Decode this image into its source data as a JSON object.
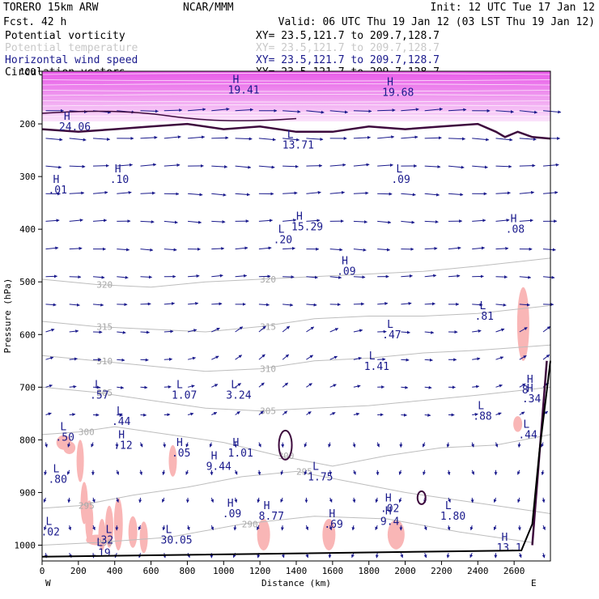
{
  "header": {
    "model": "TORERO  15km ARW",
    "fcst": "Fcst.   42 h",
    "center": "NCAR/MMM",
    "init": "Init: 12 UTC Tue 17 Jan 12",
    "valid": "Valid: 06 UTC Thu 19 Jan 12 (03 LST Thu 19 Jan 12)",
    "fields": [
      {
        "name": "Potential vorticity",
        "xy": "XY=  23.5,121.7 to 209.7,128.7",
        "color": "#000000"
      },
      {
        "name": "Potential temperature",
        "xy": "XY=  23.5,121.7 to 209.7,128.7",
        "color": "#c8c8c8"
      },
      {
        "name": "Horizontal wind speed",
        "xy": "XY=  23.5,121.7 to 209.7,128.7",
        "color": "#1a1a8c"
      },
      {
        "name": "Circulation vectors",
        "xy": "XY=  23.5,121.7 to 209.7,128.7",
        "color": "#000000"
      }
    ]
  },
  "chart_data": {
    "type": "cross-section",
    "xlabel": "Distance (km)",
    "ylabel": "Pressure (hPa)",
    "xlim": [
      0,
      2800
    ],
    "ylim": [
      1030,
      100
    ],
    "x_ticks": [
      0,
      200,
      400,
      600,
      800,
      1000,
      1200,
      1400,
      1600,
      1800,
      2000,
      2200,
      2400,
      2600
    ],
    "y_ticks": [
      100,
      200,
      300,
      400,
      500,
      600,
      700,
      800,
      900,
      1000
    ],
    "west_label": "W",
    "east_label": "E",
    "theta_contours": [
      {
        "label": "320",
        "points": [
          [
            0,
            495
          ],
          [
            300,
            505
          ],
          [
            600,
            510
          ],
          [
            900,
            500
          ],
          [
            1200,
            495
          ],
          [
            1500,
            490
          ],
          [
            1800,
            485
          ],
          [
            2100,
            480
          ],
          [
            2400,
            470
          ],
          [
            2800,
            455
          ]
        ]
      },
      {
        "label": "315",
        "points": [
          [
            0,
            575
          ],
          [
            300,
            585
          ],
          [
            600,
            590
          ],
          [
            900,
            595
          ],
          [
            1200,
            585
          ],
          [
            1500,
            570
          ],
          [
            1800,
            565
          ],
          [
            2100,
            565
          ],
          [
            2400,
            560
          ],
          [
            2800,
            545
          ]
        ]
      },
      {
        "label": "310",
        "points": [
          [
            0,
            640
          ],
          [
            300,
            650
          ],
          [
            600,
            660
          ],
          [
            900,
            670
          ],
          [
            1200,
            665
          ],
          [
            1500,
            650
          ],
          [
            1800,
            645
          ],
          [
            2100,
            635
          ],
          [
            2400,
            630
          ],
          [
            2800,
            620
          ]
        ]
      },
      {
        "label": "305",
        "points": [
          [
            0,
            700
          ],
          [
            300,
            710
          ],
          [
            600,
            725
          ],
          [
            900,
            740
          ],
          [
            1200,
            745
          ],
          [
            1500,
            740
          ],
          [
            1800,
            735
          ],
          [
            2100,
            725
          ],
          [
            2400,
            715
          ],
          [
            2800,
            700
          ]
        ]
      },
      {
        "label": "300",
        "points": [
          [
            0,
            790
          ],
          [
            200,
            785
          ],
          [
            400,
            775
          ],
          [
            700,
            790
          ],
          [
            1000,
            805
          ],
          [
            1300,
            830
          ],
          [
            1600,
            850
          ],
          [
            1900,
            830
          ],
          [
            2200,
            815
          ],
          [
            2500,
            810
          ],
          [
            2800,
            790
          ]
        ]
      },
      {
        "label": "295",
        "points": [
          [
            0,
            930
          ],
          [
            200,
            925
          ],
          [
            500,
            905
          ],
          [
            800,
            890
          ],
          [
            1100,
            870
          ],
          [
            1400,
            860
          ],
          [
            1700,
            880
          ],
          [
            2000,
            900
          ],
          [
            2300,
            915
          ],
          [
            2600,
            930
          ],
          [
            2800,
            940
          ]
        ]
      },
      {
        "label": "290",
        "points": [
          [
            0,
            1000
          ],
          [
            300,
            995
          ],
          [
            700,
            985
          ],
          [
            1100,
            960
          ],
          [
            1500,
            945
          ],
          [
            1900,
            950
          ],
          [
            2300,
            975
          ],
          [
            2700,
            995
          ]
        ]
      }
    ],
    "pv_2pvu_points": [
      [
        0,
        210
      ],
      [
        200,
        215
      ],
      [
        400,
        210
      ],
      [
        600,
        205
      ],
      [
        800,
        200
      ],
      [
        1000,
        210
      ],
      [
        1200,
        205
      ],
      [
        1400,
        215
      ],
      [
        1600,
        215
      ],
      [
        1800,
        205
      ],
      [
        2000,
        210
      ],
      [
        2200,
        205
      ],
      [
        2400,
        200
      ],
      [
        2500,
        215
      ],
      [
        2550,
        225
      ],
      [
        2620,
        215
      ],
      [
        2700,
        225
      ],
      [
        2800,
        228
      ]
    ],
    "high_speed_band": {
      "from_hPa": 100,
      "to_hPa": 200
    },
    "wind_label_color": "#1a1a8c",
    "vector_color": "#1a1a8c",
    "extrema": [
      {
        "type": "H",
        "value": "24.06",
        "x": 120,
        "p": 195
      },
      {
        "type": "H",
        "value": "19.41",
        "x": 1050,
        "p": 125
      },
      {
        "type": "H",
        "value": "19.68",
        "x": 1900,
        "p": 130
      },
      {
        "type": "L",
        "value": "13.71",
        "x": 1350,
        "p": 230
      },
      {
        "type": "H",
        "value": "15.29",
        "x": 1400,
        "p": 385
      },
      {
        "type": "L",
        "value": ".20",
        "x": 1300,
        "p": 410
      },
      {
        "type": "H",
        "value": ".10",
        "x": 400,
        "p": 295
      },
      {
        "type": "L",
        "value": ".09",
        "x": 1950,
        "p": 295
      },
      {
        "type": "H",
        "value": ".01",
        "x": 60,
        "p": 315
      },
      {
        "type": "H",
        "value": ".08",
        "x": 2580,
        "p": 390
      },
      {
        "type": "H",
        "value": ".09",
        "x": 1650,
        "p": 470
      },
      {
        "type": "L",
        "value": ".81",
        "x": 2410,
        "p": 555
      },
      {
        "type": "L",
        "value": ".47",
        "x": 1900,
        "p": 590
      },
      {
        "type": "L",
        "value": "1.41",
        "x": 1800,
        "p": 650
      },
      {
        "type": "L",
        "value": ".57",
        "x": 290,
        "p": 705
      },
      {
        "type": "L",
        "value": "1.07",
        "x": 740,
        "p": 705
      },
      {
        "type": "L",
        "value": "3.24",
        "x": 1040,
        "p": 705
      },
      {
        "type": "L",
        "value": ".88",
        "x": 2400,
        "p": 745
      },
      {
        "type": "L",
        "value": ".44",
        "x": 410,
        "p": 755
      },
      {
        "type": "L",
        "value": ".50",
        "x": 100,
        "p": 785
      },
      {
        "type": "H",
        "value": ".12",
        "x": 420,
        "p": 800
      },
      {
        "type": "H",
        "value": ".05",
        "x": 740,
        "p": 815
      },
      {
        "type": "H",
        "value": "1.01",
        "x": 1050,
        "p": 815
      },
      {
        "type": "H",
        "value": "9.44",
        "x": 930,
        "p": 840
      },
      {
        "type": "L",
        "value": "1.75",
        "x": 1490,
        "p": 860
      },
      {
        "type": "L",
        "value": ".80",
        "x": 60,
        "p": 865
      },
      {
        "type": "H",
        "value": ".02",
        "x": 1890,
        "p": 920
      },
      {
        "type": "H",
        "value": "9.4",
        "x": 1890,
        "p": 945
      },
      {
        "type": "L",
        "value": "1.80",
        "x": 2220,
        "p": 935
      },
      {
        "type": "H",
        "value": ".09",
        "x": 1020,
        "p": 930
      },
      {
        "type": "H",
        "value": "8.77",
        "x": 1220,
        "p": 935
      },
      {
        "type": "H",
        "value": ".69",
        "x": 1580,
        "p": 950
      },
      {
        "type": "L",
        "value": "32",
        "x": 350,
        "p": 980
      },
      {
        "type": "L",
        "value": "30.05",
        "x": 680,
        "p": 980
      },
      {
        "type": "L",
        "value": ".02",
        "x": 20,
        "p": 965
      },
      {
        "type": "L",
        "value": ".19",
        "x": 300,
        "p": 1005
      },
      {
        "type": "H",
        "value": "8",
        "x": 2670,
        "p": 695
      },
      {
        "type": "H",
        "value": ".34",
        "x": 2670,
        "p": 712
      },
      {
        "type": "L",
        "value": ".44",
        "x": 2650,
        "p": 780
      },
      {
        "type": "H",
        "value": "13.1",
        "x": 2530,
        "p": 995
      }
    ]
  }
}
